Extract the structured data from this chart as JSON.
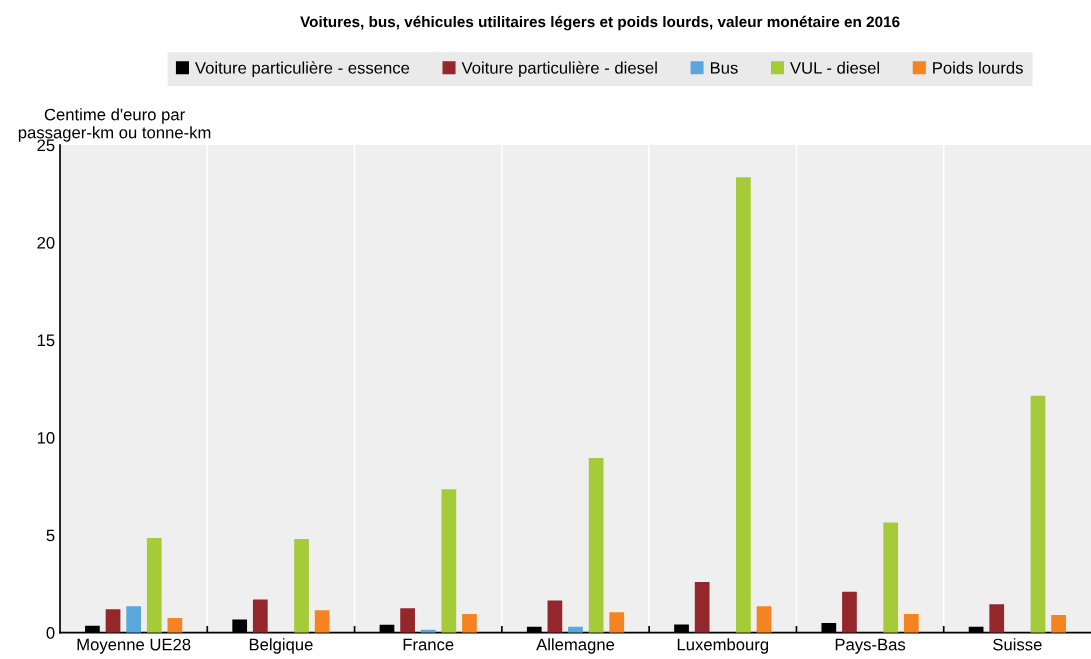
{
  "chart_data": {
    "type": "bar",
    "title": "Voitures, bus, véhicules utilitaires légers et poids lourds, valeur monétaire en 2016",
    "ylabel": "Centime d'euro par\npassager-km ou tonne-km",
    "categories": [
      "Moyenne UE28",
      "Belgique",
      "France",
      "Allemagne",
      "Luxembourg",
      "Pays-Bas",
      "Suisse"
    ],
    "series": [
      {
        "name": "Voiture particulière - essence",
        "color": "#000000",
        "values": [
          0.35,
          0.68,
          0.4,
          0.3,
          0.42,
          0.5,
          0.3
        ]
      },
      {
        "name": "Voiture particulière - diesel",
        "color": "#93272c",
        "values": [
          1.2,
          1.7,
          1.25,
          1.65,
          2.6,
          2.1,
          1.45
        ]
      },
      {
        "name": "Bus",
        "color": "#5aa7dc",
        "values": [
          1.35,
          null,
          0.15,
          0.3,
          null,
          null,
          null
        ]
      },
      {
        "name": "VUL - diesel",
        "color": "#a6cb38",
        "values": [
          4.85,
          4.8,
          7.35,
          8.95,
          23.35,
          5.65,
          12.15
        ]
      },
      {
        "name": "Poids lourds",
        "color": "#f38421",
        "values": [
          0.75,
          1.15,
          0.95,
          1.05,
          1.35,
          0.95,
          0.9
        ]
      }
    ],
    "ylim": [
      0,
      25
    ],
    "yticks": [
      0,
      5,
      10,
      15,
      20,
      25
    ],
    "grid": "x",
    "legend": "top"
  }
}
